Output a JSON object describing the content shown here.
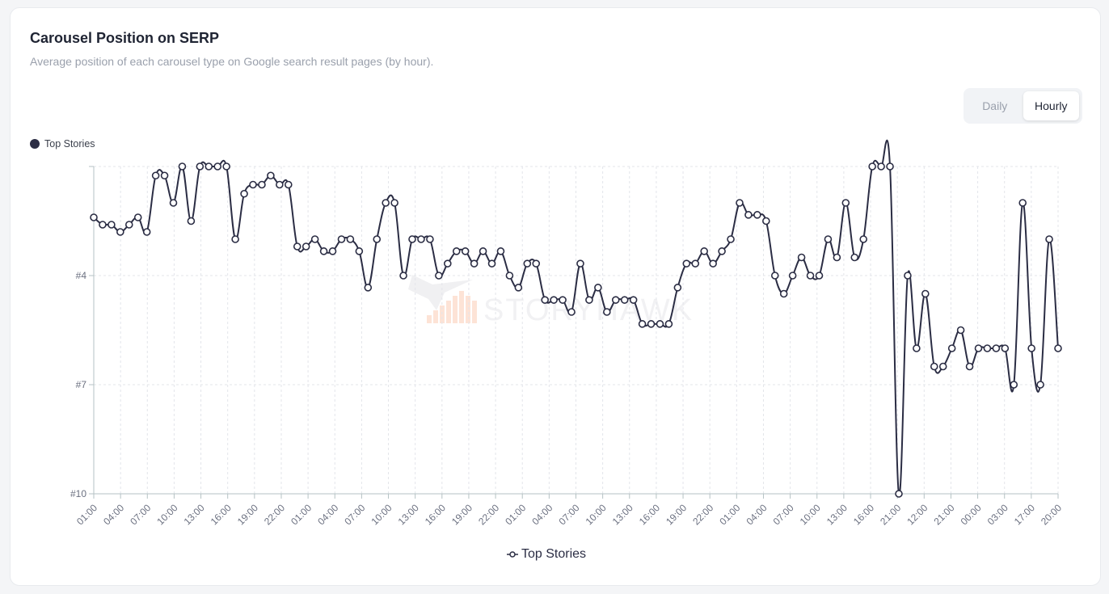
{
  "card": {
    "title": "Carousel Position on SERP",
    "subtitle": "Average position of each carousel type on Google search result pages (by hour)."
  },
  "toggle": {
    "options": [
      "Daily",
      "Hourly"
    ],
    "selected": "Hourly"
  },
  "watermark": {
    "text": "STORYHAWK"
  },
  "colors": {
    "series": "#2b2d44",
    "grid": "#e3e5ea",
    "axis": "#b5c2c4",
    "watermark_bars": "#fde3d6"
  },
  "chart_data": {
    "type": "line",
    "title": "",
    "xlabel": "",
    "ylabel": "",
    "ylim": [
      1,
      10
    ],
    "y_inverted": true,
    "y_ticks": [
      1,
      4,
      7,
      10
    ],
    "y_tick_labels": [
      "",
      "#4",
      "#7",
      "#10"
    ],
    "x_tick_labels": [
      "01:00",
      "04:00",
      "07:00",
      "10:00",
      "13:00",
      "16:00",
      "19:00",
      "22:00",
      "01:00",
      "04:00",
      "07:00",
      "10:00",
      "13:00",
      "16:00",
      "19:00",
      "22:00",
      "01:00",
      "04:00",
      "07:00",
      "10:00",
      "13:00",
      "16:00",
      "19:00",
      "22:00",
      "01:00",
      "04:00",
      "07:00",
      "10:00",
      "13:00",
      "16:00",
      "21:00",
      "12:00",
      "21:00",
      "00:00",
      "03:00",
      "17:00",
      "20:00"
    ],
    "legend_top_label": "Top Stories",
    "legend_bottom_label": "Top Stories",
    "grid": true,
    "series": [
      {
        "name": "Top Stories",
        "values": [
          2.4,
          2.6,
          2.6,
          2.8,
          2.6,
          2.4,
          2.8,
          1.25,
          1.25,
          2.0,
          1.0,
          2.5,
          1.0,
          1.0,
          1.0,
          1.0,
          3.0,
          1.75,
          1.5,
          1.5,
          1.25,
          1.5,
          1.5,
          3.2,
          3.2,
          3.0,
          3.33,
          3.33,
          3.0,
          3.0,
          3.33,
          4.33,
          3.0,
          2.0,
          2.0,
          4.0,
          3.0,
          3.0,
          3.0,
          4.0,
          3.67,
          3.33,
          3.33,
          3.67,
          3.33,
          3.67,
          3.33,
          4.0,
          4.33,
          3.67,
          3.67,
          4.67,
          4.67,
          4.67,
          5.0,
          3.67,
          4.67,
          4.33,
          5.0,
          4.67,
          4.67,
          4.67,
          5.33,
          5.33,
          5.33,
          5.33,
          4.33,
          3.67,
          3.67,
          3.33,
          3.67,
          3.33,
          3.0,
          2.0,
          2.33,
          2.33,
          2.5,
          4.0,
          4.5,
          4.0,
          3.5,
          4.0,
          4.0,
          3.0,
          3.5,
          2.0,
          3.5,
          3.0,
          1.0,
          1.0,
          1.0,
          10.0,
          4.0,
          6.0,
          4.5,
          6.5,
          6.5,
          6.0,
          5.5,
          6.5,
          6.0,
          6.0,
          6.0,
          6.0,
          7.0,
          2.0,
          6.0,
          7.0,
          3.0,
          6.0
        ]
      }
    ]
  }
}
